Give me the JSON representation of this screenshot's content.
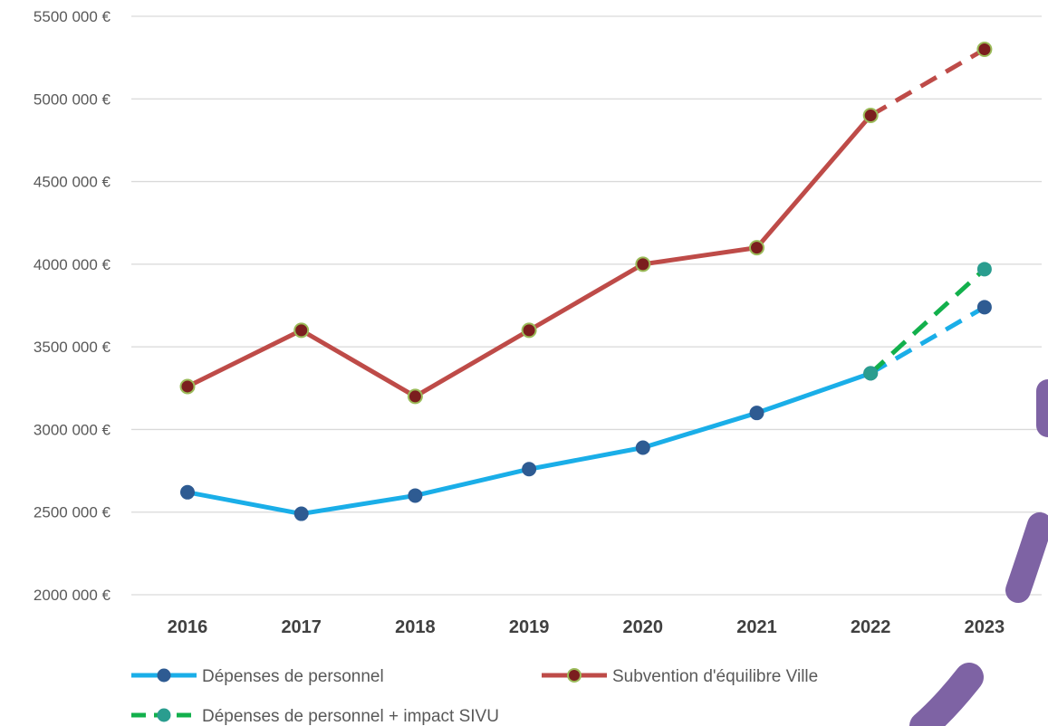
{
  "chart_data": {
    "type": "line",
    "categories": [
      "2016",
      "2017",
      "2018",
      "2019",
      "2020",
      "2021",
      "2022",
      "2023"
    ],
    "ylim": [
      2000000,
      5500000
    ],
    "yticks": [
      2000000,
      2500000,
      3000000,
      3500000,
      4000000,
      4500000,
      5000000,
      5500000
    ],
    "ytick_labels": [
      "2000 000 €",
      "2500 000 €",
      "3000 000 €",
      "3500 000 €",
      "4000 000 €",
      "4500 000 €",
      "5000 000 €",
      "5500 000 €"
    ],
    "grid": "horizontal",
    "legend_position": "bottom",
    "series": [
      {
        "name": "Dépenses de personnel",
        "values": [
          2620000,
          2490000,
          2600000,
          2760000,
          2890000,
          3100000,
          3340000,
          3740000
        ],
        "color": "#1aaee8",
        "marker_color": "#2e5b92",
        "projected_from": "2022"
      },
      {
        "name": "Subvention d'équilibre Ville",
        "values": [
          3260000,
          3600000,
          3200000,
          3600000,
          4000000,
          4100000,
          4900000,
          5300000
        ],
        "color": "#be4b48",
        "marker_color": "#7b1e1e",
        "marker_edge": "#9bbb59",
        "projected_from": "2022"
      },
      {
        "name": "Dépenses de personnel + impact SIVU",
        "values": [
          null,
          null,
          null,
          null,
          null,
          null,
          3340000,
          3970000
        ],
        "color": "#12b04c",
        "marker_color": "#2a9d8f",
        "dashed": true
      }
    ]
  },
  "decoration": {
    "stroke_color": "#7e63a4"
  }
}
